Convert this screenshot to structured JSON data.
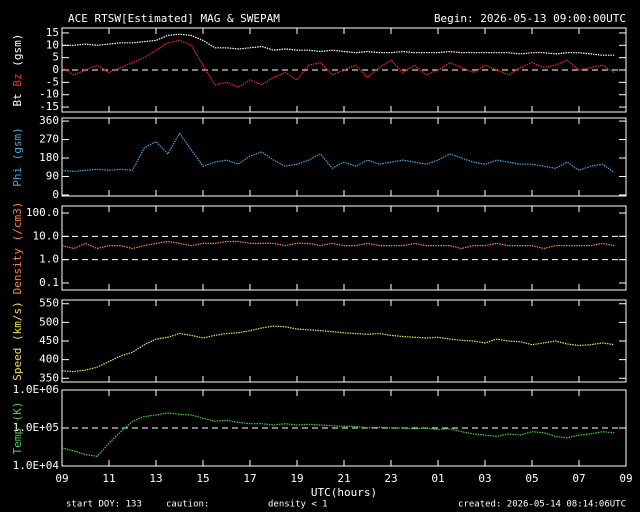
{
  "header": {
    "title": "ACE RTSW[Estimated] MAG & SWEPAM",
    "begin": "Begin: 2026-05-13 09:00:00UTC"
  },
  "footer": {
    "start": "start DOY: 133",
    "caution": "caution:",
    "density_note": "density < 1",
    "density_note_color": "#ff8040",
    "created": "created: 2026-05-14 08:14:06UTC"
  },
  "chart_data": [
    {
      "type": "line",
      "ylabel": [
        {
          "text": "Bt",
          "color": "#ffffff"
        },
        {
          "text": "Bz",
          "color": "#ff2020"
        },
        {
          "text": "(gsm)",
          "color": "#ffffff"
        }
      ],
      "xlim": [
        0,
        24
      ],
      "ylim": [
        -17,
        17
      ],
      "yticks": [
        15,
        10,
        5,
        0,
        -5,
        -10,
        -15
      ],
      "hlines": [
        0
      ],
      "x": [
        0,
        0.5,
        1,
        1.5,
        2,
        2.5,
        3,
        3.5,
        4,
        4.5,
        5,
        5.5,
        6,
        6.5,
        7,
        7.5,
        8,
        8.5,
        9,
        9.5,
        10,
        10.5,
        11,
        11.5,
        12,
        12.5,
        13,
        13.5,
        14,
        14.5,
        15,
        15.5,
        16,
        16.5,
        17,
        17.5,
        18,
        18.5,
        19,
        19.5,
        20,
        20.5,
        21,
        21.5,
        22,
        22.5,
        23,
        23.5
      ],
      "series": [
        {
          "name": "Bt",
          "color": "#ffffff",
          "values": [
            10,
            10,
            10.5,
            10,
            10.5,
            11,
            11,
            11.5,
            12,
            14,
            14.5,
            14,
            12,
            9,
            9,
            8.5,
            9,
            9.5,
            8,
            8.5,
            8,
            8,
            7.5,
            8,
            7.5,
            7,
            7.5,
            7,
            7,
            7.5,
            7,
            7,
            7,
            7.5,
            7,
            7,
            7,
            7,
            7,
            6.5,
            7,
            7,
            6.5,
            7,
            7,
            6.5,
            6,
            6
          ]
        },
        {
          "name": "Bz",
          "color": "#ff2020",
          "values": [
            1,
            -2,
            0,
            2,
            -1,
            1,
            3,
            5,
            8,
            11,
            12,
            10,
            2,
            -6,
            -5,
            -7,
            -4,
            -6,
            -3,
            -1,
            -4,
            2,
            3,
            -2,
            0,
            2,
            -3,
            1,
            4,
            -1,
            2,
            -2,
            0,
            3,
            1,
            -1,
            2,
            0,
            -2,
            1,
            3,
            1,
            2,
            4,
            0,
            1,
            2,
            -1
          ]
        }
      ]
    },
    {
      "type": "line",
      "ylabel": [
        {
          "text": "Phi (gsm)",
          "color": "#40a8e0"
        }
      ],
      "xlim": [
        0,
        24
      ],
      "ylim": [
        -5,
        375
      ],
      "yticks": [
        360,
        270,
        180,
        90,
        0
      ],
      "hlines": [],
      "x": [
        0,
        0.5,
        1,
        1.5,
        2,
        2.5,
        3,
        3.5,
        4,
        4.5,
        5,
        5.5,
        6,
        6.5,
        7,
        7.5,
        8,
        8.5,
        9,
        9.5,
        10,
        10.5,
        11,
        11.5,
        12,
        12.5,
        13,
        13.5,
        14,
        14.5,
        15,
        15.5,
        16,
        16.5,
        17,
        17.5,
        18,
        18.5,
        19,
        19.5,
        20,
        20.5,
        21,
        21.5,
        22,
        22.5,
        23,
        23.5
      ],
      "series": [
        {
          "name": "Phi",
          "color": "#40a8e0",
          "values": [
            120,
            115,
            120,
            125,
            120,
            125,
            120,
            230,
            260,
            200,
            300,
            220,
            140,
            160,
            170,
            150,
            190,
            210,
            170,
            140,
            150,
            170,
            200,
            130,
            160,
            140,
            170,
            150,
            160,
            170,
            160,
            150,
            170,
            200,
            180,
            160,
            150,
            170,
            160,
            150,
            150,
            140,
            130,
            160,
            120,
            140,
            150,
            110
          ]
        }
      ]
    },
    {
      "type": "line",
      "log": true,
      "ylabel": [
        {
          "text": "Density (/cm3)",
          "color": "#ff8040"
        }
      ],
      "xlim": [
        0,
        24
      ],
      "ylim": [
        0.05,
        200
      ],
      "yticks": [
        {
          "value": 100,
          "label": "100.0"
        },
        {
          "value": 10,
          "label": "10.0"
        },
        {
          "value": 1,
          "label": "1.0"
        },
        0.1
      ],
      "hlines": [
        10,
        1
      ],
      "x": [
        0,
        0.5,
        1,
        1.5,
        2,
        2.5,
        3,
        3.5,
        4,
        4.5,
        5,
        5.5,
        6,
        6.5,
        7,
        7.5,
        8,
        8.5,
        9,
        9.5,
        10,
        10.5,
        11,
        11.5,
        12,
        12.5,
        13,
        13.5,
        14,
        14.5,
        15,
        15.5,
        16,
        16.5,
        17,
        17.5,
        18,
        18.5,
        19,
        19.5,
        20,
        20.5,
        21,
        21.5,
        22,
        22.5,
        23,
        23.5
      ],
      "series": [
        {
          "name": "Density",
          "color": "#ff8040",
          "values": [
            4,
            3,
            5,
            3,
            4,
            4,
            3,
            4,
            5,
            6,
            5,
            4,
            5,
            5,
            6,
            6,
            5,
            5,
            5,
            4,
            5,
            5,
            4,
            5,
            4,
            4,
            5,
            4,
            4,
            4,
            5,
            4,
            4,
            4,
            3,
            4,
            4,
            5,
            4,
            4,
            4,
            3,
            4,
            4,
            4,
            4,
            5,
            4
          ]
        }
      ]
    },
    {
      "type": "line",
      "ylabel": [
        {
          "text": "Speed (km/s)",
          "color": "#f0e040"
        }
      ],
      "xlim": [
        0,
        24
      ],
      "ylim": [
        340,
        560
      ],
      "yticks": [
        550,
        500,
        450,
        400,
        350
      ],
      "hlines": [],
      "x": [
        0,
        0.5,
        1,
        1.5,
        2,
        2.5,
        3,
        3.5,
        4,
        4.5,
        5,
        5.5,
        6,
        6.5,
        7,
        7.5,
        8,
        8.5,
        9,
        9.5,
        10,
        10.5,
        11,
        11.5,
        12,
        12.5,
        13,
        13.5,
        14,
        14.5,
        15,
        15.5,
        16,
        16.5,
        17,
        17.5,
        18,
        18.5,
        19,
        19.5,
        20,
        20.5,
        21,
        21.5,
        22,
        22.5,
        23,
        23.5
      ],
      "series": [
        {
          "name": "Speed",
          "color": "#f0e040",
          "values": [
            370,
            368,
            372,
            380,
            395,
            410,
            420,
            440,
            455,
            460,
            470,
            465,
            458,
            465,
            470,
            472,
            478,
            485,
            490,
            488,
            482,
            480,
            478,
            475,
            472,
            470,
            468,
            470,
            465,
            462,
            460,
            458,
            460,
            455,
            452,
            450,
            445,
            455,
            450,
            448,
            440,
            445,
            450,
            442,
            438,
            440,
            445,
            440
          ]
        }
      ]
    },
    {
      "type": "line",
      "log": true,
      "ylabel": [
        {
          "text": "Temp (K)",
          "color": "#40d040"
        }
      ],
      "xlim": [
        0,
        24
      ],
      "ylim": [
        10000,
        1000000
      ],
      "yticks": [
        {
          "value": 1000000,
          "label": "1.0E+06"
        },
        {
          "value": 100000,
          "label": "1.0E+05"
        },
        {
          "value": 10000,
          "label": "1.0E+04"
        }
      ],
      "hlines": [
        100000
      ],
      "x": [
        0,
        0.5,
        1,
        1.5,
        2,
        2.5,
        3,
        3.5,
        4,
        4.5,
        5,
        5.5,
        6,
        6.5,
        7,
        7.5,
        8,
        8.5,
        9,
        9.5,
        10,
        10.5,
        11,
        11.5,
        12,
        12.5,
        13,
        13.5,
        14,
        14.5,
        15,
        15.5,
        16,
        16.5,
        17,
        17.5,
        18,
        18.5,
        19,
        19.5,
        20,
        20.5,
        21,
        21.5,
        22,
        22.5,
        23,
        23.5
      ],
      "series": [
        {
          "name": "Temp",
          "color": "#40d040",
          "values": [
            30000,
            25000,
            20000,
            18000,
            40000,
            80000,
            150000,
            200000,
            220000,
            250000,
            230000,
            220000,
            180000,
            150000,
            160000,
            140000,
            130000,
            130000,
            120000,
            130000,
            120000,
            125000,
            120000,
            115000,
            110000,
            110000,
            100000,
            105000,
            100000,
            100000,
            95000,
            100000,
            90000,
            95000,
            80000,
            70000,
            65000,
            60000,
            70000,
            65000,
            80000,
            75000,
            60000,
            55000,
            65000,
            70000,
            80000,
            75000
          ]
        }
      ],
      "xlabel": "UTC(hours)",
      "xticks": [
        {
          "value": 0,
          "label": "09"
        },
        {
          "value": 2,
          "label": "11"
        },
        {
          "value": 4,
          "label": "13"
        },
        {
          "value": 6,
          "label": "15"
        },
        {
          "value": 8,
          "label": "17"
        },
        {
          "value": 10,
          "label": "19"
        },
        {
          "value": 12,
          "label": "21"
        },
        {
          "value": 14,
          "label": "23"
        },
        {
          "value": 16,
          "label": "01"
        },
        {
          "value": 18,
          "label": "03"
        },
        {
          "value": 20,
          "label": "05"
        },
        {
          "value": 22,
          "label": "07"
        },
        {
          "value": 24,
          "label": "09"
        }
      ]
    }
  ]
}
